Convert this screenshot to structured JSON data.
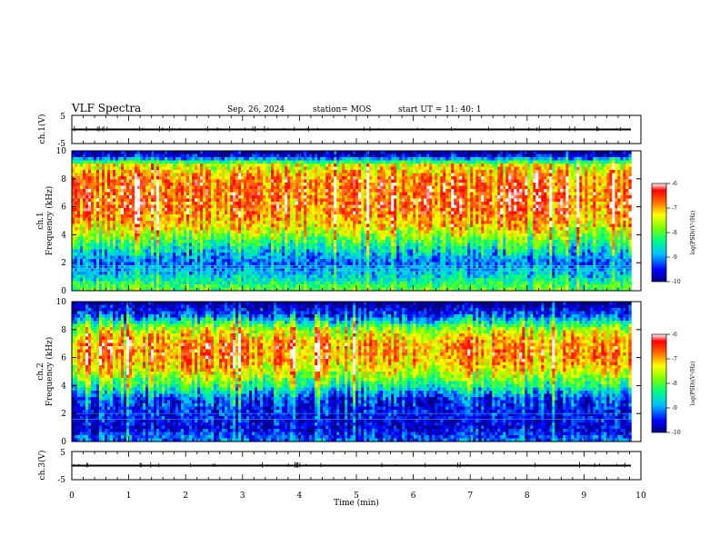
{
  "header": {
    "title": "VLF Spectra",
    "date": "Sep. 26, 2024",
    "station": "station= MOS",
    "start_ut": "start  UT =   11: 40: 1"
  },
  "chart_data": [
    {
      "type": "line",
      "panel": "ch1-waveform",
      "ylabel": "ch.1(V)",
      "ylim": [
        -5,
        5
      ],
      "y_ticks": [
        "5",
        "-5"
      ],
      "x_range_min": [
        0,
        10
      ],
      "series": [
        {
          "x": [
            0,
            9.83
          ],
          "values": [
            0,
            0
          ]
        }
      ]
    },
    {
      "type": "heatmap",
      "panel": "ch1-spectrogram",
      "ylabel": "ch.1\nFrequency (kHz)",
      "ylim": [
        0,
        10
      ],
      "y_ticks": [
        "0",
        "2",
        "4",
        "6",
        "8",
        "10"
      ],
      "data_x_max_min": 9.83,
      "colorbar": {
        "label": "log(PSD)(V²/Hz)",
        "range": [
          -10,
          -6
        ],
        "ticks": [
          "-6",
          "-7",
          "-8",
          "-9",
          "-10"
        ]
      },
      "intensity_profile_log_psd": [
        {
          "freq_khz": 0.2,
          "value": -8.0
        },
        {
          "freq_khz": 1.0,
          "value": -8.7
        },
        {
          "freq_khz": 2.0,
          "value": -9.2
        },
        {
          "freq_khz": 3.0,
          "value": -8.6
        },
        {
          "freq_khz": 4.0,
          "value": -7.7
        },
        {
          "freq_khz": 5.0,
          "value": -7.0
        },
        {
          "freq_khz": 6.0,
          "value": -6.7
        },
        {
          "freq_khz": 7.0,
          "value": -6.7
        },
        {
          "freq_khz": 8.0,
          "value": -6.8
        },
        {
          "freq_khz": 9.0,
          "value": -7.5
        },
        {
          "freq_khz": 9.6,
          "value": -9.6
        },
        {
          "freq_khz": 10.0,
          "value": -10.0
        }
      ]
    },
    {
      "type": "heatmap",
      "panel": "ch2-spectrogram",
      "ylabel": "ch.2\nFrequency (kHz)",
      "ylim": [
        0,
        10
      ],
      "y_ticks": [
        "0",
        "2",
        "4",
        "6",
        "8",
        "10"
      ],
      "data_x_max_min": 9.83,
      "colorbar": {
        "label": "log(PSD)(V²/Hz)",
        "range": [
          -10,
          -6
        ],
        "ticks": [
          "-6",
          "-7",
          "-8",
          "-9",
          "-10"
        ]
      },
      "intensity_profile_log_psd": [
        {
          "freq_khz": 0.2,
          "value": -9.2
        },
        {
          "freq_khz": 1.0,
          "value": -9.7
        },
        {
          "freq_khz": 2.0,
          "value": -9.5
        },
        {
          "freq_khz": 3.0,
          "value": -9.4
        },
        {
          "freq_khz": 4.0,
          "value": -8.3
        },
        {
          "freq_khz": 5.0,
          "value": -7.4
        },
        {
          "freq_khz": 6.0,
          "value": -6.9
        },
        {
          "freq_khz": 7.0,
          "value": -6.9
        },
        {
          "freq_khz": 8.0,
          "value": -7.6
        },
        {
          "freq_khz": 9.0,
          "value": -9.3
        },
        {
          "freq_khz": 10.0,
          "value": -10.0
        }
      ]
    },
    {
      "type": "line",
      "panel": "ch3-waveform",
      "ylabel": "ch.3(V)",
      "xlabel": "Time  (min)",
      "ylim": [
        -5,
        5
      ],
      "y_ticks": [
        "5",
        "-5"
      ],
      "xlim": [
        0,
        10
      ],
      "x_ticks": [
        "0",
        "1",
        "2",
        "3",
        "4",
        "5",
        "6",
        "7",
        "8",
        "9",
        "10"
      ],
      "series": [
        {
          "x": [
            0,
            9.83
          ],
          "values": [
            0,
            0
          ]
        }
      ]
    }
  ]
}
